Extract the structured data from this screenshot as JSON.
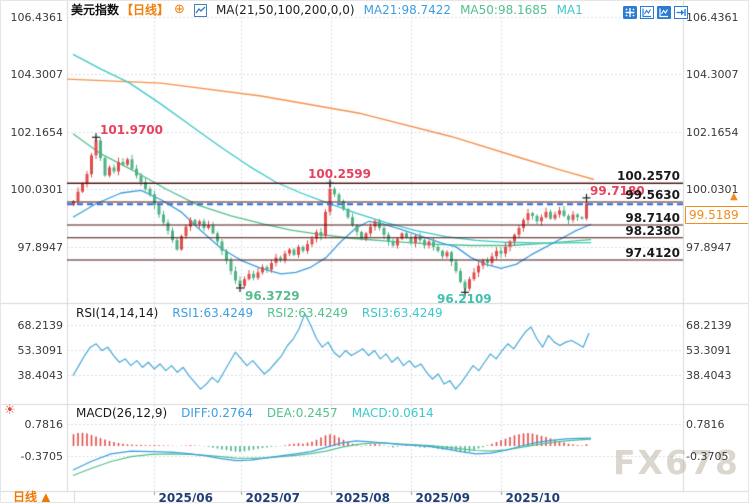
{
  "header": {
    "title": "美元指数",
    "period": "【日线】",
    "ma_settings": "MA(21,50,100,200,0,0)",
    "ma21": "MA21:98.7422",
    "ma50": "MA50:98.1685",
    "ma100_truncated": "MA1"
  },
  "icons": {
    "settings_glyph": "☀",
    "add_glyph": "⊕",
    "price_arrow": "▲",
    "tab_arrow": "▲"
  },
  "axes": {
    "price_labels": [
      "106.4361",
      "104.3007",
      "102.1654",
      "100.0301",
      "97.8947"
    ],
    "rsi_labels": [
      "68.2139",
      "53.3091",
      "38.4043"
    ],
    "macd_labels": [
      "0.7816",
      "-0.3705"
    ],
    "dates": [
      "2025/06",
      "2025/07",
      "2025/08",
      "2025/09",
      "2025/10"
    ]
  },
  "price_box": {
    "value": "99.5189"
  },
  "chart_labels": {
    "swing_high_main": "101.9700",
    "swing_high_mid": "100.2599",
    "swing_high_recent": "99.7180",
    "swing_low_main": "96.3729",
    "swing_low_recent": "96.2109",
    "hlines": [
      "100.2570",
      "99.5630",
      "98.7140",
      "98.2380",
      "97.4120"
    ]
  },
  "rsi_panel": {
    "title": "RSI(14,14,14)",
    "rsi1": "RSI1:63.4249",
    "rsi2": "RSI2:63.4249",
    "rsi3": "RSI3:63.4249"
  },
  "macd_panel": {
    "title": "MACD(26,12,9)",
    "diff": "DIFF:0.2764",
    "dea": "DEA:0.2457",
    "macd": "MACD:0.0614"
  },
  "bottom_bar": {
    "tab": "日线"
  },
  "watermark": "FX678",
  "colors": {
    "up": "#e14d4d",
    "down": "#4fb286",
    "ma21": "#3d9ee0",
    "ma50": "#52c18c",
    "ma100": "#3ec8c8",
    "ma200": "#f5924d",
    "hline": "#4d1212",
    "current_line": "#2e6fd6",
    "swing_red": "#e8405e",
    "swing_green": "#57bd8e",
    "swing_teal": "#3fc0b0",
    "rsi_line": "#4aa8d8",
    "grid": "#ccd4df",
    "separator": "#d9d9d9"
  },
  "chart_data": {
    "type": "candlestick",
    "symbol": "美元指数",
    "interval": "日线",
    "y_axis_ticks": [
      106.4361,
      104.3007,
      102.1654,
      100.0301,
      97.8947
    ],
    "current_price": 99.5189,
    "horizontal_lines": [
      100.257,
      100.2599,
      99.563,
      98.714,
      98.238,
      97.412
    ],
    "swings": {
      "high1": 101.97,
      "high2": 100.2599,
      "high3": 99.718,
      "low1": 96.3729,
      "low2": 96.2109
    },
    "ma_values": {
      "ma21": 98.7422,
      "ma50": 98.1685
    },
    "first_open": 99.45,
    "closes": [
      99.6,
      99.95,
      100.25,
      100.6,
      101.3,
      101.85,
      101.2,
      100.55,
      100.85,
      100.7,
      101.05,
      100.95,
      101.15,
      100.8,
      100.55,
      100.3,
      100.05,
      99.85,
      99.45,
      99.1,
      98.8,
      98.5,
      98.15,
      97.8,
      98.3,
      98.65,
      98.9,
      98.75,
      98.85,
      98.6,
      98.7,
      98.4,
      98.1,
      97.75,
      97.4,
      97.0,
      96.65,
      96.45,
      96.7,
      96.9,
      96.75,
      96.95,
      97.15,
      97.05,
      97.3,
      97.5,
      97.4,
      97.65,
      97.8,
      97.6,
      97.9,
      97.75,
      98.0,
      98.2,
      98.45,
      98.3,
      99.2,
      100.05,
      99.85,
      99.6,
      99.3,
      99.0,
      98.7,
      98.45,
      98.2,
      98.4,
      98.65,
      98.85,
      98.6,
      98.35,
      98.1,
      97.95,
      98.2,
      98.4,
      98.25,
      98.05,
      98.3,
      98.15,
      97.95,
      98.1,
      97.9,
      97.75,
      97.55,
      97.7,
      97.35,
      97.0,
      96.6,
      96.35,
      96.7,
      96.95,
      97.2,
      97.4,
      97.3,
      97.55,
      97.75,
      97.65,
      97.9,
      98.1,
      98.35,
      98.6,
      98.9,
      99.15,
      99.05,
      98.85,
      99.0,
      99.2,
      98.95,
      99.1,
      99.25,
      99.05,
      98.9,
      99.1,
      99.0,
      98.95,
      99.5189
    ],
    "wick_overrides": {
      "5": {
        "high": 101.97
      },
      "37": {
        "low": 96.3729
      },
      "57": {
        "high": 100.2599
      },
      "87": {
        "low": 96.2109
      },
      "114": {
        "high": 99.718,
        "low": 98.88
      }
    },
    "ma21_points": [
      [
        72,
        99.0
      ],
      [
        95,
        99.5
      ],
      [
        120,
        99.9
      ],
      [
        140,
        100.0
      ],
      [
        160,
        99.65
      ],
      [
        180,
        99.2
      ],
      [
        200,
        98.5
      ],
      [
        220,
        97.85
      ],
      [
        240,
        97.4
      ],
      [
        260,
        97.1
      ],
      [
        280,
        96.9
      ],
      [
        295,
        96.95
      ],
      [
        310,
        97.15
      ],
      [
        325,
        97.5
      ],
      [
        340,
        98.1
      ],
      [
        355,
        98.6
      ],
      [
        368,
        98.85
      ],
      [
        382,
        98.75
      ],
      [
        400,
        98.55
      ],
      [
        420,
        98.3
      ],
      [
        440,
        98.05
      ],
      [
        455,
        97.9
      ],
      [
        470,
        97.5
      ],
      [
        485,
        97.25
      ],
      [
        500,
        97.1
      ],
      [
        515,
        97.25
      ],
      [
        530,
        97.6
      ],
      [
        545,
        97.9
      ],
      [
        560,
        98.2
      ],
      [
        575,
        98.5
      ],
      [
        590,
        98.74
      ]
    ],
    "ma50_points": [
      [
        72,
        102.1
      ],
      [
        100,
        101.35
      ],
      [
        130,
        100.78
      ],
      [
        165,
        100.05
      ],
      [
        197,
        99.45
      ],
      [
        230,
        99.05
      ],
      [
        263,
        98.74
      ],
      [
        290,
        98.52
      ],
      [
        317,
        98.37
      ],
      [
        350,
        98.22
      ],
      [
        390,
        98.1
      ],
      [
        430,
        98.0
      ],
      [
        470,
        97.95
      ],
      [
        510,
        97.95
      ],
      [
        550,
        98.05
      ],
      [
        590,
        98.17
      ]
    ],
    "ma100_points": [
      [
        72,
        105.05
      ],
      [
        100,
        104.5
      ],
      [
        128,
        104.0
      ],
      [
        160,
        103.2
      ],
      [
        190,
        102.4
      ],
      [
        220,
        101.6
      ],
      [
        248,
        100.9
      ],
      [
        275,
        100.3
      ],
      [
        300,
        99.9
      ],
      [
        325,
        99.55
      ],
      [
        355,
        99.15
      ],
      [
        385,
        98.8
      ],
      [
        415,
        98.5
      ],
      [
        445,
        98.28
      ],
      [
        475,
        98.14
      ],
      [
        505,
        98.07
      ],
      [
        545,
        98.04
      ],
      [
        590,
        98.06
      ]
    ],
    "ma200_points": [
      [
        66,
        104.13
      ],
      [
        160,
        103.98
      ],
      [
        260,
        103.5
      ],
      [
        360,
        102.85
      ],
      [
        450,
        102.0
      ],
      [
        520,
        101.2
      ],
      [
        560,
        100.75
      ],
      [
        593,
        100.4
      ]
    ],
    "rsi": {
      "grid": [
        68.2139,
        53.3091,
        38.4043
      ],
      "current": 63.4249,
      "values": [
        38,
        44,
        50,
        55,
        57,
        53,
        55,
        50,
        46,
        48,
        44,
        47,
        43,
        46,
        42,
        45,
        41,
        44,
        40,
        43,
        38,
        34,
        30,
        33,
        37,
        34,
        40,
        46,
        52,
        48,
        44,
        47,
        43,
        39,
        42,
        46,
        50,
        56,
        60,
        66,
        75,
        68,
        60,
        55,
        58,
        52,
        49,
        53,
        50,
        52,
        54,
        50,
        53,
        48,
        51,
        46,
        49,
        44,
        47,
        43,
        45,
        40,
        36,
        39,
        33,
        35,
        30,
        34,
        39,
        44,
        41,
        46,
        51,
        48,
        53,
        57,
        54,
        59,
        64,
        67,
        60,
        55,
        62,
        58,
        56,
        58,
        59,
        57,
        55,
        63.4
      ]
    },
    "macd": {
      "grid": [
        0.7816,
        -0.3705
      ],
      "diff": 0.2764,
      "dea": 0.2457,
      "macd": 0.0614,
      "hist": [
        0.42,
        0.46,
        0.47,
        0.44,
        0.39,
        0.34,
        0.28,
        0.23,
        0.18,
        0.14,
        0.11,
        0.08,
        0.06,
        0.05,
        0.04,
        0.04,
        0.03,
        0.03,
        0.04,
        0.03,
        0.02,
        0.02,
        0.01,
        -0.01,
        0.01,
        0.02,
        0.03,
        0.02,
        0.01,
        -0.01,
        -0.03,
        -0.06,
        -0.09,
        -0.12,
        -0.15,
        -0.18,
        -0.2,
        -0.21,
        -0.19,
        -0.16,
        -0.13,
        -0.1,
        -0.07,
        -0.05,
        -0.03,
        -0.02,
        -0.01,
        0.03,
        0.06,
        0.08,
        0.1,
        0.08,
        0.12,
        0.15,
        0.22,
        0.3,
        0.38,
        0.42,
        0.38,
        0.3,
        0.22,
        0.15,
        0.08,
        0.03,
        -0.02,
        0.02,
        0.05,
        0.07,
        0.05,
        0.02,
        -0.02,
        -0.05,
        -0.03,
        0.01,
        0.03,
        0.01,
        -0.02,
        -0.04,
        -0.06,
        -0.04,
        -0.07,
        -0.1,
        -0.13,
        -0.12,
        -0.15,
        -0.19,
        -0.22,
        -0.24,
        -0.2,
        -0.15,
        -0.09,
        -0.04,
        0.02,
        0.08,
        0.14,
        0.2,
        0.26,
        0.32,
        0.38,
        0.42,
        0.45,
        0.46,
        0.44,
        0.4,
        0.36,
        0.32,
        0.27,
        0.22,
        0.17,
        0.12,
        0.08,
        0.05,
        0.03,
        0.02,
        0.0614
      ],
      "diff_points": [
        [
          72,
          -0.85
        ],
        [
          90,
          -0.55
        ],
        [
          110,
          -0.28
        ],
        [
          130,
          -0.18
        ],
        [
          150,
          -0.2
        ],
        [
          170,
          -0.22
        ],
        [
          190,
          -0.28
        ],
        [
          205,
          -0.35
        ],
        [
          220,
          -0.45
        ],
        [
          235,
          -0.52
        ],
        [
          250,
          -0.5
        ],
        [
          265,
          -0.42
        ],
        [
          280,
          -0.35
        ],
        [
          295,
          -0.28
        ],
        [
          310,
          -0.2
        ],
        [
          325,
          -0.05
        ],
        [
          340,
          0.1
        ],
        [
          355,
          0.18
        ],
        [
          370,
          0.15
        ],
        [
          385,
          0.1
        ],
        [
          400,
          0.05
        ],
        [
          415,
          0.02
        ],
        [
          430,
          -0.02
        ],
        [
          445,
          -0.1
        ],
        [
          460,
          -0.2
        ],
        [
          475,
          -0.28
        ],
        [
          490,
          -0.25
        ],
        [
          505,
          -0.15
        ],
        [
          520,
          0.0
        ],
        [
          535,
          0.12
        ],
        [
          550,
          0.2
        ],
        [
          565,
          0.25
        ],
        [
          578,
          0.27
        ],
        [
          590,
          0.2764
        ]
      ],
      "dea_points": [
        [
          72,
          -1.05
        ],
        [
          90,
          -0.8
        ],
        [
          110,
          -0.55
        ],
        [
          130,
          -0.38
        ],
        [
          150,
          -0.3
        ],
        [
          170,
          -0.28
        ],
        [
          190,
          -0.3
        ],
        [
          205,
          -0.33
        ],
        [
          220,
          -0.38
        ],
        [
          235,
          -0.43
        ],
        [
          250,
          -0.44
        ],
        [
          265,
          -0.42
        ],
        [
          280,
          -0.38
        ],
        [
          295,
          -0.33
        ],
        [
          310,
          -0.27
        ],
        [
          325,
          -0.18
        ],
        [
          340,
          -0.05
        ],
        [
          355,
          0.05
        ],
        [
          370,
          0.1
        ],
        [
          385,
          0.1
        ],
        [
          400,
          0.07
        ],
        [
          415,
          0.04
        ],
        [
          430,
          0.01
        ],
        [
          445,
          -0.04
        ],
        [
          460,
          -0.1
        ],
        [
          475,
          -0.16
        ],
        [
          490,
          -0.18
        ],
        [
          505,
          -0.14
        ],
        [
          520,
          -0.05
        ],
        [
          535,
          0.04
        ],
        [
          550,
          0.12
        ],
        [
          565,
          0.18
        ],
        [
          578,
          0.22
        ],
        [
          590,
          0.2457
        ]
      ]
    }
  }
}
